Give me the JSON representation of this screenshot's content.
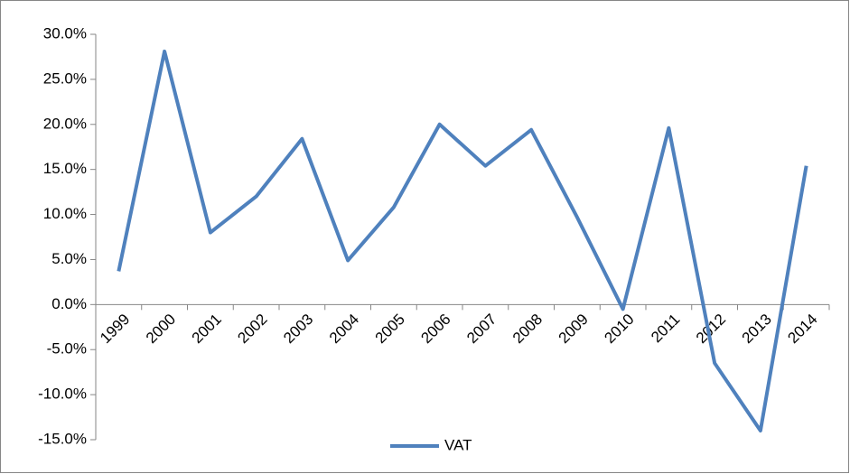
{
  "chart_data": {
    "type": "line",
    "categories": [
      "1999",
      "2000",
      "2001",
      "2002",
      "2003",
      "2004",
      "2005",
      "2006",
      "2007",
      "2008",
      "2009",
      "2010",
      "2011",
      "2012",
      "2013",
      "2014"
    ],
    "series": [
      {
        "name": "VAT",
        "color": "#4f81bd",
        "values": [
          3.7,
          28.1,
          8.0,
          12.0,
          18.4,
          4.9,
          10.8,
          20.0,
          15.4,
          19.4,
          9.7,
          -0.5,
          19.6,
          -6.5,
          -14.0,
          15.4
        ]
      }
    ],
    "ylim": [
      -15,
      30
    ],
    "yticks": [
      {
        "value": -15,
        "label": "-15.0%"
      },
      {
        "value": -10,
        "label": "-10.0%"
      },
      {
        "value": -5,
        "label": "-5.0%"
      },
      {
        "value": 0,
        "label": "0.0%"
      },
      {
        "value": 5,
        "label": "5.0%"
      },
      {
        "value": 10,
        "label": "10.0%"
      },
      {
        "value": 15,
        "label": "15.0%"
      },
      {
        "value": 20,
        "label": "20.0%"
      },
      {
        "value": 25,
        "label": "25.0%"
      },
      {
        "value": 30,
        "label": "30.0%"
      }
    ],
    "grid": false,
    "legend": "bottom"
  }
}
